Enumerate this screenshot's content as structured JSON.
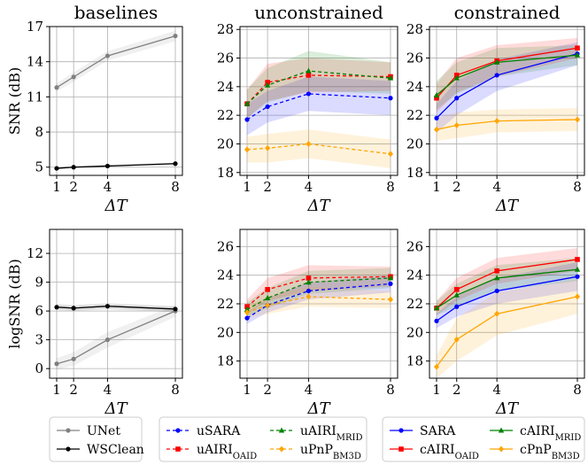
{
  "colors": {
    "UNet": "#808080",
    "WSClean": "#000000",
    "uSARA": "#0000ff",
    "uAIRI_OAID": "#ff0000",
    "uAIRI_MRID": "#008000",
    "uPnP_BM3D": "#ffa500",
    "SARA": "#0000ff",
    "cAIRI_OAID": "#ff0000",
    "cAIRI_MRID": "#008000",
    "cPnP_BM3D": "#ffa500"
  },
  "legends": [
    {
      "entries": [
        {
          "label": "UNet"
        },
        {
          "label": "WSClean"
        }
      ]
    },
    {
      "entries": [
        {
          "base": "uSARA",
          "sub": ""
        },
        {
          "base": "uAIRI",
          "sub": "MRID"
        },
        {
          "base": "uAIRI",
          "sub": "OAID"
        },
        {
          "base": "uPnP",
          "sub": "BM3D"
        }
      ]
    },
    {
      "entries": [
        {
          "base": "SARA",
          "sub": ""
        },
        {
          "base": "cAIRI",
          "sub": "MRID"
        },
        {
          "base": "cAIRI",
          "sub": "OAID"
        },
        {
          "base": "cPnP",
          "sub": "BM3D"
        }
      ]
    }
  ],
  "chart_data": [
    {
      "type": "line",
      "title": "baselines",
      "ylabel": "SNR (dB)",
      "xlabel": "ΔT",
      "x": [
        1,
        2,
        4,
        8
      ],
      "xticks": [
        "1",
        "2",
        "4",
        "8"
      ],
      "ylim": [
        4.3,
        17
      ],
      "yticks": [
        "5",
        "8",
        "11",
        "14",
        "17"
      ],
      "grid": true,
      "series": [
        {
          "name": "UNet",
          "values": [
            11.8,
            12.7,
            14.5,
            16.2
          ],
          "band": [
            0.35,
            0.4,
            0.4,
            0.45
          ],
          "dashed": false
        },
        {
          "name": "WSClean",
          "values": [
            4.9,
            5.0,
            5.1,
            5.3
          ],
          "band": [
            0.08,
            0.08,
            0.08,
            0.08
          ],
          "dashed": false
        }
      ]
    },
    {
      "type": "line",
      "title": "unconstrained",
      "ylabel": "",
      "xlabel": "ΔT",
      "x": [
        1,
        2,
        4,
        8
      ],
      "xticks": [
        "1",
        "2",
        "4",
        "8"
      ],
      "ylim": [
        17.8,
        28.2
      ],
      "yticks": [
        "18",
        "20",
        "22",
        "24",
        "26",
        "28"
      ],
      "grid": true,
      "series": [
        {
          "name": "uSARA",
          "values": [
            21.7,
            22.6,
            23.5,
            23.2
          ],
          "band": [
            1.1,
            1.1,
            1.2,
            1.2
          ],
          "dashed": true
        },
        {
          "name": "uAIRI_OAID",
          "values": [
            22.8,
            24.3,
            24.8,
            24.7
          ],
          "band": [
            1.0,
            1.3,
            1.2,
            1.0
          ],
          "dashed": true
        },
        {
          "name": "uAIRI_MRID",
          "values": [
            22.8,
            24.1,
            25.1,
            24.6
          ],
          "band": [
            1.0,
            1.2,
            1.4,
            1.1
          ],
          "dashed": true
        },
        {
          "name": "uPnP_BM3D",
          "values": [
            19.6,
            19.7,
            20.0,
            19.3
          ],
          "band": [
            0.9,
            1.0,
            1.0,
            1.0
          ],
          "dashed": true
        }
      ]
    },
    {
      "type": "line",
      "title": "constrained",
      "ylabel": "",
      "xlabel": "ΔT",
      "x": [
        1,
        2,
        4,
        8
      ],
      "xticks": [
        "1",
        "2",
        "4",
        "8"
      ],
      "ylim": [
        17.8,
        28.2
      ],
      "yticks": [
        "18",
        "20",
        "22",
        "24",
        "26",
        "28"
      ],
      "grid": true,
      "series": [
        {
          "name": "SARA",
          "values": [
            21.8,
            23.2,
            24.8,
            26.3
          ],
          "band": [
            1.0,
            1.2,
            1.1,
            0.8
          ],
          "dashed": false
        },
        {
          "name": "cAIRI_OAID",
          "values": [
            23.2,
            24.8,
            25.8,
            26.7
          ],
          "band": [
            1.0,
            1.2,
            1.1,
            0.7
          ],
          "dashed": false
        },
        {
          "name": "cAIRI_MRID",
          "values": [
            23.4,
            24.6,
            25.7,
            26.2
          ],
          "band": [
            1.0,
            1.1,
            1.0,
            0.7
          ],
          "dashed": false
        },
        {
          "name": "cPnP_BM3D",
          "values": [
            21.0,
            21.3,
            21.6,
            21.7
          ],
          "band": [
            0.8,
            0.9,
            0.8,
            0.8
          ],
          "dashed": false
        }
      ]
    },
    {
      "type": "line",
      "title": "",
      "ylabel": "logSNR (dB)",
      "xlabel": "ΔT",
      "x": [
        1,
        2,
        4,
        8
      ],
      "xticks": [
        "1",
        "2",
        "4",
        "8"
      ],
      "ylim": [
        -1,
        14.5
      ],
      "yticks": [
        "0",
        "3",
        "6",
        "9",
        "12"
      ],
      "grid": true,
      "series": [
        {
          "name": "UNet",
          "values": [
            0.5,
            1.0,
            3.0,
            6.0
          ],
          "band": [
            0.6,
            0.7,
            0.8,
            0.6
          ],
          "dashed": false
        },
        {
          "name": "WSClean",
          "values": [
            6.4,
            6.3,
            6.5,
            6.2
          ],
          "band": [
            0.3,
            0.3,
            0.3,
            0.3
          ],
          "dashed": false
        }
      ]
    },
    {
      "type": "line",
      "title": "",
      "ylabel": "",
      "xlabel": "ΔT",
      "x": [
        1,
        2,
        4,
        8
      ],
      "xticks": [
        "1",
        "2",
        "4",
        "8"
      ],
      "ylim": [
        16.8,
        27.2
      ],
      "yticks": [
        "18",
        "20",
        "22",
        "24",
        "26"
      ],
      "grid": true,
      "series": [
        {
          "name": "uSARA",
          "values": [
            21.0,
            21.9,
            22.9,
            23.4
          ],
          "band": [
            0.4,
            0.5,
            0.6,
            0.6
          ],
          "dashed": true
        },
        {
          "name": "uAIRI_OAID",
          "values": [
            21.8,
            23.0,
            23.8,
            23.9
          ],
          "band": [
            0.5,
            0.8,
            0.9,
            0.7
          ],
          "dashed": true
        },
        {
          "name": "uAIRI_MRID",
          "values": [
            21.6,
            22.4,
            23.5,
            23.8
          ],
          "band": [
            0.5,
            0.7,
            0.8,
            0.7
          ],
          "dashed": true
        },
        {
          "name": "uPnP_BM3D",
          "values": [
            21.4,
            21.9,
            22.5,
            22.3
          ],
          "band": [
            0.4,
            0.6,
            0.7,
            0.6
          ],
          "dashed": true
        }
      ]
    },
    {
      "type": "line",
      "title": "",
      "ylabel": "",
      "xlabel": "ΔT",
      "x": [
        1,
        2,
        4,
        8
      ],
      "xticks": [
        "1",
        "2",
        "4",
        "8"
      ],
      "ylim": [
        16.8,
        27.2
      ],
      "yticks": [
        "18",
        "20",
        "22",
        "24",
        "26"
      ],
      "grid": true,
      "series": [
        {
          "name": "SARA",
          "values": [
            20.8,
            21.8,
            22.9,
            23.9
          ],
          "band": [
            0.5,
            0.7,
            0.9,
            1.0
          ],
          "dashed": false
        },
        {
          "name": "cAIRI_OAID",
          "values": [
            21.7,
            23.0,
            24.3,
            25.1
          ],
          "band": [
            0.5,
            0.8,
            0.9,
            0.8
          ],
          "dashed": false
        },
        {
          "name": "cAIRI_MRID",
          "values": [
            21.7,
            22.6,
            23.8,
            24.4
          ],
          "band": [
            0.5,
            0.8,
            0.9,
            0.8
          ],
          "dashed": false
        },
        {
          "name": "cPnP_BM3D",
          "values": [
            17.6,
            19.5,
            21.3,
            22.5
          ],
          "band": [
            0.8,
            1.5,
            1.5,
            1.2
          ],
          "dashed": false
        }
      ]
    }
  ]
}
